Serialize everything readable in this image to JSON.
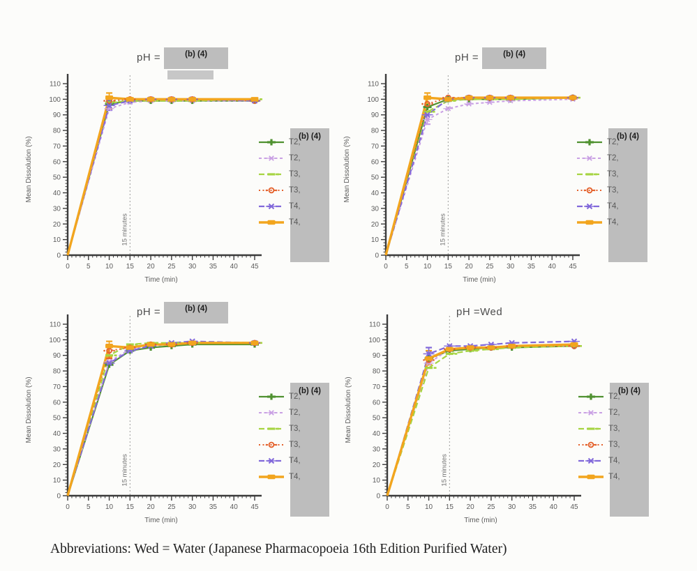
{
  "page": {
    "background": "#fcfcfa",
    "footer": "Abbreviations: Wed = Water (Japanese Pharmacopoeia 16th Edition Purified Water)"
  },
  "redaction": {
    "title_label": "(b) (4)",
    "legend_label": "(b) (4)",
    "box_color": "#bdbdbd"
  },
  "series_styles": [
    {
      "label": "T2,",
      "color": "#4f9130",
      "dash": "",
      "width": 2.2,
      "marker": "plus"
    },
    {
      "label": "T2,",
      "color": "#c9a0e4",
      "dash": "4 3.5",
      "width": 2,
      "marker": "x"
    },
    {
      "label": "T3,",
      "color": "#a6d442",
      "dash": "8 4",
      "width": 2.2,
      "marker": "dash"
    },
    {
      "label": "T3,",
      "color": "#e4622d",
      "dash": "2 3.5",
      "width": 2,
      "marker": "circle"
    },
    {
      "label": "T4,",
      "color": "#8168da",
      "dash": "8 4",
      "width": 2.2,
      "marker": "xbar"
    },
    {
      "label": "T4,",
      "color": "#f2a51e",
      "dash": "",
      "width": 3.4,
      "marker": "square"
    }
  ],
  "chart_data": [
    {
      "type": "line",
      "title": "pH =",
      "title_redacted": true,
      "xlabel": "Time (min)",
      "ylabel": "Mean Dissolution (%)",
      "xlim": [
        0,
        45
      ],
      "ylim": [
        0,
        110
      ],
      "x_ticks": [
        0,
        5,
        10,
        15,
        20,
        25,
        30,
        35,
        40,
        45
      ],
      "y_ticks": [
        0,
        10,
        20,
        30,
        40,
        50,
        60,
        70,
        80,
        90,
        100,
        110
      ],
      "annotation": {
        "x": 15,
        "text": "15 minutes"
      },
      "x": [
        0,
        10,
        15,
        20,
        25,
        30,
        45
      ],
      "series": [
        {
          "name": "T2,",
          "values": [
            0,
            97,
            99,
            99,
            99,
            99,
            99
          ]
        },
        {
          "name": "T2,",
          "values": [
            0,
            94,
            98,
            99,
            99,
            99,
            99
          ]
        },
        {
          "name": "T3,",
          "values": [
            0,
            98,
            99,
            99,
            99,
            99,
            100
          ]
        },
        {
          "name": "T3,",
          "values": [
            0,
            99,
            100,
            100,
            100,
            100,
            99
          ]
        },
        {
          "name": "T4,",
          "values": [
            0,
            96,
            99,
            100,
            100,
            100,
            99
          ]
        },
        {
          "name": "T4,",
          "values": [
            0,
            101,
            100,
            100,
            100,
            100,
            100
          ]
        }
      ],
      "error_bars": [
        {
          "series": 5,
          "x": 10,
          "lo": 94,
          "hi": 104
        },
        {
          "series": 4,
          "x": 10,
          "lo": 93,
          "hi": 99
        }
      ]
    },
    {
      "type": "line",
      "title": "pH =",
      "title_redacted": true,
      "xlabel": "Time (min)",
      "ylabel": "Mean Dissolution (%)",
      "xlim": [
        0,
        45
      ],
      "ylim": [
        0,
        110
      ],
      "x_ticks": [
        0,
        5,
        10,
        15,
        20,
        25,
        30,
        35,
        40,
        45
      ],
      "y_ticks": [
        0,
        10,
        20,
        30,
        40,
        50,
        60,
        70,
        80,
        90,
        100,
        110
      ],
      "annotation": {
        "x": 15,
        "text": "15 minutes"
      },
      "x": [
        0,
        10,
        15,
        20,
        25,
        30,
        45
      ],
      "series": [
        {
          "name": "T2,",
          "values": [
            0,
            95,
            100,
            100,
            100,
            100,
            101
          ]
        },
        {
          "name": "T2,",
          "values": [
            0,
            87,
            94,
            97,
            98,
            99,
            100
          ]
        },
        {
          "name": "T3,",
          "values": [
            0,
            92,
            99,
            100,
            100,
            100,
            101
          ]
        },
        {
          "name": "T3,",
          "values": [
            0,
            97,
            101,
            101,
            101,
            101,
            101
          ]
        },
        {
          "name": "T4,",
          "values": [
            0,
            90,
            100,
            101,
            101,
            101,
            101
          ]
        },
        {
          "name": "T4,",
          "values": [
            0,
            101,
            100,
            101,
            101,
            101,
            101
          ]
        }
      ],
      "error_bars": [
        {
          "series": 5,
          "x": 10,
          "lo": 95,
          "hi": 104
        },
        {
          "series": 1,
          "x": 10,
          "lo": 84,
          "hi": 90
        }
      ]
    },
    {
      "type": "line",
      "title": "pH =",
      "title_redacted": true,
      "xlabel": "Time (min)",
      "ylabel": "Mean Dissolution (%)",
      "xlim": [
        0,
        45
      ],
      "ylim": [
        0,
        110
      ],
      "x_ticks": [
        0,
        5,
        10,
        15,
        20,
        25,
        30,
        35,
        40,
        45
      ],
      "y_ticks": [
        0,
        10,
        20,
        30,
        40,
        50,
        60,
        70,
        80,
        90,
        100,
        110
      ],
      "annotation": {
        "x": 15,
        "text": "15 minutes"
      },
      "x": [
        0,
        10,
        15,
        20,
        25,
        30,
        45
      ],
      "series": [
        {
          "name": "T2,",
          "values": [
            0,
            84,
            93,
            95,
            96,
            97,
            97
          ]
        },
        {
          "name": "T2,",
          "values": [
            0,
            86,
            94,
            96,
            97,
            98,
            98
          ]
        },
        {
          "name": "T3,",
          "values": [
            0,
            90,
            97,
            98,
            98,
            98,
            98
          ]
        },
        {
          "name": "T3,",
          "values": [
            0,
            93,
            95,
            97,
            97,
            98,
            98
          ]
        },
        {
          "name": "T4,",
          "values": [
            0,
            85,
            93,
            96,
            98,
            99,
            98
          ]
        },
        {
          "name": "T4,",
          "values": [
            0,
            96,
            95,
            97,
            97,
            98,
            98
          ]
        }
      ],
      "error_bars": [
        {
          "series": 5,
          "x": 10,
          "lo": 89,
          "hi": 99
        },
        {
          "series": 3,
          "x": 10,
          "lo": 88,
          "hi": 97
        }
      ]
    },
    {
      "type": "line",
      "title": "pH =Wed",
      "title_redacted": false,
      "xlabel": "Time (min)",
      "ylabel": "Mean Dissolution (%)",
      "xlim": [
        0,
        45
      ],
      "ylim": [
        0,
        110
      ],
      "x_ticks": [
        0,
        5,
        10,
        15,
        20,
        25,
        30,
        35,
        40,
        45
      ],
      "y_ticks": [
        0,
        10,
        20,
        30,
        40,
        50,
        60,
        70,
        80,
        90,
        100,
        110
      ],
      "annotation": {
        "x": 15,
        "text": "15 minutes"
      },
      "x": [
        0,
        10,
        15,
        20,
        25,
        30,
        45
      ],
      "series": [
        {
          "name": "T2,",
          "values": [
            0,
            88,
            93,
            94,
            95,
            95,
            96
          ]
        },
        {
          "name": "T2,",
          "values": [
            0,
            85,
            94,
            95,
            95,
            96,
            96
          ]
        },
        {
          "name": "T3,",
          "values": [
            0,
            82,
            91,
            93,
            94,
            95,
            96
          ]
        },
        {
          "name": "T3,",
          "values": [
            0,
            87,
            94,
            95,
            95,
            96,
            96
          ]
        },
        {
          "name": "T4,",
          "values": [
            0,
            91,
            96,
            96,
            97,
            98,
            99
          ]
        },
        {
          "name": "T4,",
          "values": [
            0,
            88,
            94,
            95,
            95,
            96,
            97
          ]
        }
      ],
      "error_bars": [
        {
          "series": 5,
          "x": 10,
          "lo": 84,
          "hi": 93
        },
        {
          "series": 4,
          "x": 10,
          "lo": 88,
          "hi": 95
        }
      ]
    }
  ]
}
